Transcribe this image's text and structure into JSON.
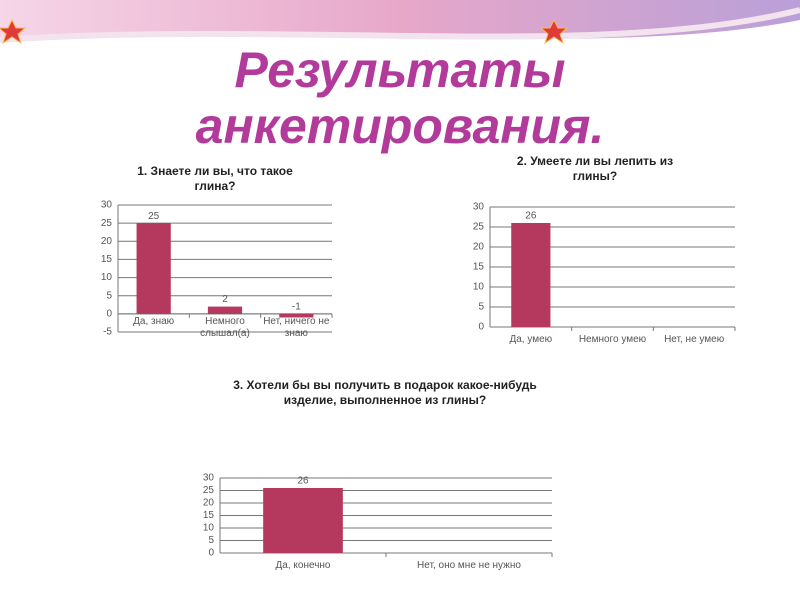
{
  "title": "Результаты анкетирования.",
  "chart_data": [
    {
      "type": "bar",
      "title": "1. Знаете ли вы, что такое глина?",
      "categories": [
        "Да, знаю",
        "Немного слышал(а)",
        "Нет, ничего не знаю"
      ],
      "values": [
        25,
        2,
        -1
      ],
      "color": "#b5395e",
      "ylim": [
        -5,
        30
      ],
      "yticks": [
        -5,
        0,
        5,
        10,
        15,
        20,
        25,
        30
      ],
      "grid": true
    },
    {
      "type": "bar",
      "title": "2. Умеете ли вы лепить из глины?",
      "categories": [
        "Да, умею",
        "Немного умею",
        "Нет, не умею"
      ],
      "values": [
        26,
        null,
        null
      ],
      "color": "#b5395e",
      "ylim": [
        0,
        30
      ],
      "yticks": [
        0,
        5,
        10,
        15,
        20,
        25,
        30
      ],
      "grid": true
    },
    {
      "type": "bar",
      "title": "3. Хотели бы вы получить в подарок какое-нибудь изделие, выполненное из глины?",
      "categories": [
        "Да, конечно",
        "Нет, оно мне не нужно"
      ],
      "values": [
        26,
        null
      ],
      "color": "#b5395e",
      "ylim": [
        0,
        30
      ],
      "yticks": [
        0,
        5,
        10,
        15,
        20,
        25,
        30
      ],
      "grid": true
    }
  ]
}
